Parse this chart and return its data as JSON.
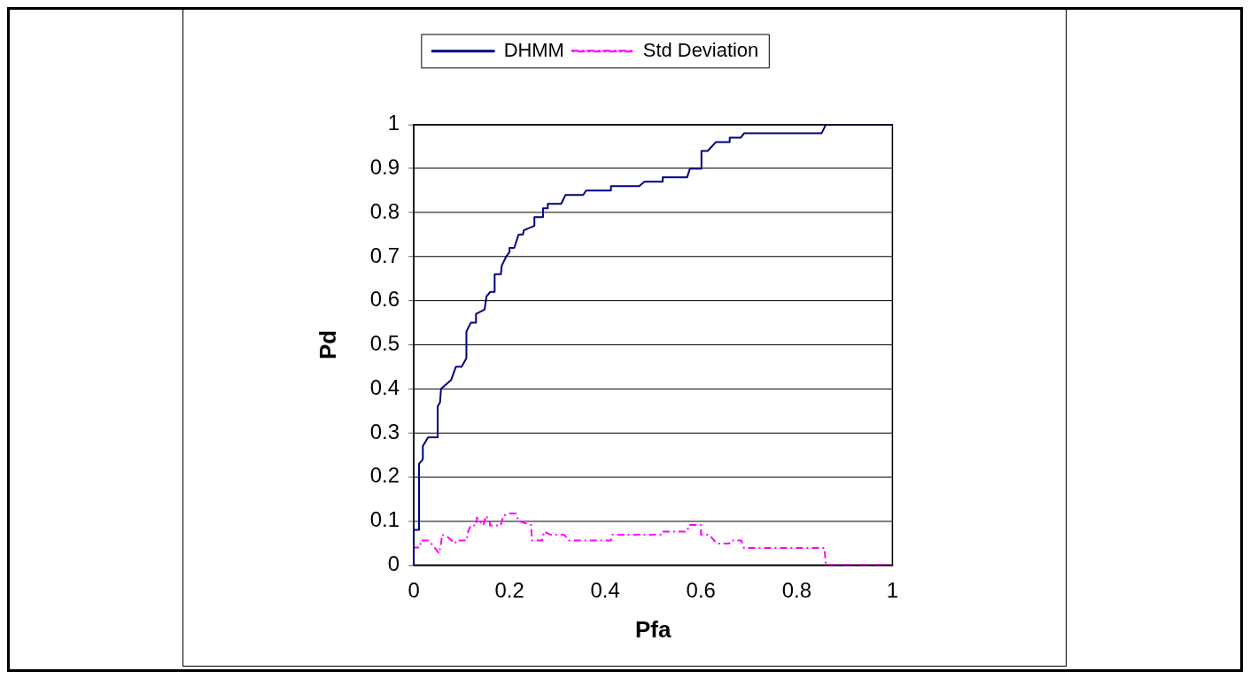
{
  "chart_data": {
    "type": "line",
    "xlabel": "Pfa",
    "ylabel": "Pd",
    "xlim": [
      0,
      1
    ],
    "ylim": [
      0,
      1
    ],
    "xticks": [
      0,
      0.2,
      0.4,
      0.6,
      0.8,
      1
    ],
    "yticks": [
      0,
      0.1,
      0.2,
      0.3,
      0.4,
      0.5,
      0.6,
      0.7,
      0.8,
      0.9,
      1
    ],
    "grid": "y",
    "legend": "top",
    "marker": "none",
    "series": [
      {
        "name": "DHMM",
        "color": "#000080",
        "line_style": "solid",
        "x": [
          0,
          0,
          0.011,
          0.011,
          0.019,
          0.019,
          0.03,
          0.05,
          0.05,
          0.055,
          0.057,
          0.078,
          0.088,
          0.1,
          0.11,
          0.11,
          0.119,
          0.13,
          0.13,
          0.148,
          0.152,
          0.16,
          0.169,
          0.169,
          0.182,
          0.184,
          0.193,
          0.2,
          0.2,
          0.21,
          0.219,
          0.228,
          0.23,
          0.252,
          0.252,
          0.27,
          0.27,
          0.28,
          0.28,
          0.308,
          0.317,
          0.354,
          0.36,
          0.412,
          0.412,
          0.471,
          0.482,
          0.52,
          0.52,
          0.571,
          0.577,
          0.601,
          0.601,
          0.614,
          0.631,
          0.66,
          0.66,
          0.683,
          0.69,
          0.852,
          0.861,
          1
        ],
        "values": [
          0,
          0.08,
          0.08,
          0.23,
          0.24,
          0.27,
          0.29,
          0.29,
          0.36,
          0.37,
          0.4,
          0.42,
          0.45,
          0.45,
          0.47,
          0.53,
          0.55,
          0.55,
          0.57,
          0.58,
          0.61,
          0.62,
          0.62,
          0.66,
          0.66,
          0.68,
          0.7,
          0.71,
          0.72,
          0.72,
          0.75,
          0.75,
          0.76,
          0.77,
          0.79,
          0.79,
          0.81,
          0.81,
          0.82,
          0.82,
          0.84,
          0.84,
          0.85,
          0.85,
          0.86,
          0.86,
          0.87,
          0.87,
          0.88,
          0.88,
          0.9,
          0.9,
          0.94,
          0.94,
          0.96,
          0.96,
          0.97,
          0.97,
          0.98,
          0.98,
          1,
          1
        ]
      },
      {
        "name": "Std Deviation",
        "color": "#ff00ff",
        "line_style": "dashed",
        "x": [
          0,
          0,
          0.013,
          0.015,
          0.02,
          0.031,
          0.053,
          0.057,
          0.059,
          0.073,
          0.086,
          0.089,
          0.111,
          0.112,
          0.119,
          0.13,
          0.132,
          0.145,
          0.151,
          0.159,
          0.159,
          0.182,
          0.187,
          0.2,
          0.213,
          0.219,
          0.233,
          0.245,
          0.247,
          0.268,
          0.272,
          0.285,
          0.314,
          0.324,
          0.412,
          0.415,
          0.519,
          0.521,
          0.571,
          0.575,
          0.6,
          0.6,
          0.617,
          0.633,
          0.659,
          0.662,
          0.684,
          0.69,
          0.858,
          0.861,
          1
        ],
        "values": [
          0,
          0.04,
          0.04,
          0.056,
          0.056,
          0.056,
          0.027,
          0.049,
          0.069,
          0.062,
          0.049,
          0.056,
          0.056,
          0.071,
          0.09,
          0.09,
          0.108,
          0.09,
          0.112,
          0.097,
          0.09,
          0.09,
          0.112,
          0.117,
          0.117,
          0.1,
          0.095,
          0.091,
          0.056,
          0.056,
          0.076,
          0.069,
          0.069,
          0.056,
          0.056,
          0.069,
          0.069,
          0.076,
          0.076,
          0.091,
          0.091,
          0.069,
          0.069,
          0.049,
          0.049,
          0.056,
          0.056,
          0.039,
          0.039,
          0,
          0
        ]
      }
    ]
  }
}
